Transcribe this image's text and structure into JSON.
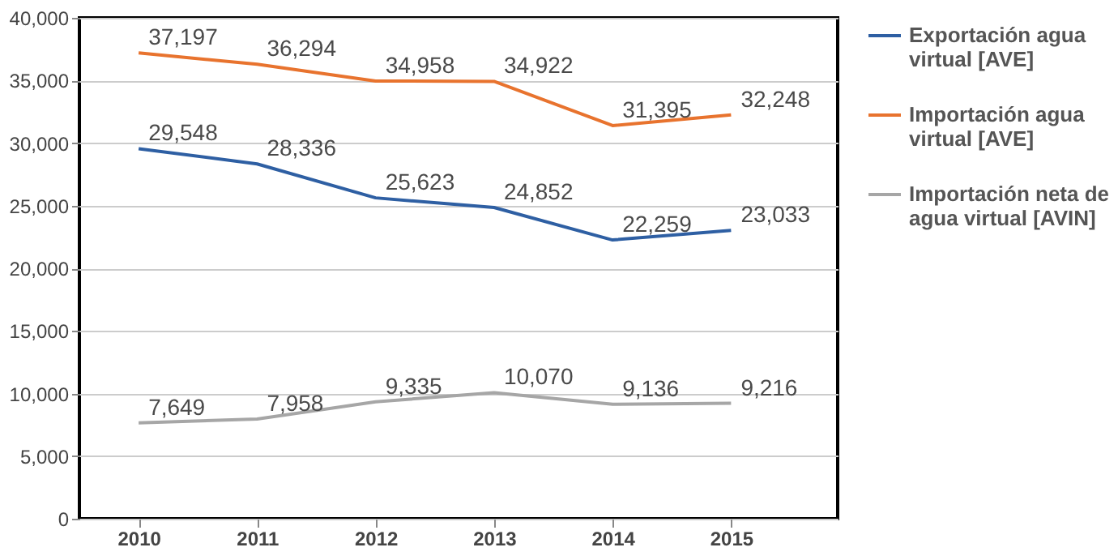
{
  "chart_data": {
    "type": "line",
    "categories": [
      "2010",
      "2011",
      "2012",
      "2013",
      "2014",
      "2015"
    ],
    "series": [
      {
        "name": "Exportación agua virtual [AVE]",
        "color": "#2e5fa3",
        "values": [
          29548,
          28336,
          25623,
          24852,
          22259,
          23033
        ],
        "value_labels": [
          "29,548",
          "28,336",
          "25,623",
          "24,852",
          "22,259",
          "23,033"
        ]
      },
      {
        "name": "Importación agua virtual [AVE]",
        "color": "#e8732e",
        "values": [
          37197,
          36294,
          34958,
          34922,
          31395,
          32248
        ],
        "value_labels": [
          "37,197",
          "36,294",
          "34,958",
          "34,922",
          "31,395",
          "32,248"
        ]
      },
      {
        "name": "Importación neta de agua virtual [AVIN]",
        "color": "#a6a6a6",
        "values": [
          7649,
          7958,
          9335,
          10070,
          9136,
          9216
        ],
        "value_labels": [
          "7,649",
          "7,958",
          "9,335",
          "10,070",
          "9,136",
          "9,216"
        ]
      }
    ],
    "ylim": [
      0,
      40000
    ],
    "yticks": [
      0,
      {
        "value": 5000,
        "label": "5,000"
      },
      {
        "value": 10000,
        "label": "10,000"
      },
      {
        "value": 15000,
        "label": "15,000"
      },
      {
        "value": 20000,
        "label": "20,000"
      },
      {
        "value": 25000,
        "label": "25,000"
      },
      {
        "value": 30000,
        "label": "30,000"
      },
      {
        "value": 35000,
        "label": "35,000"
      },
      {
        "value": 40000,
        "label": "40,000"
      }
    ],
    "grid": "y",
    "legend": "right",
    "marker": "none",
    "line_style": "solid"
  }
}
